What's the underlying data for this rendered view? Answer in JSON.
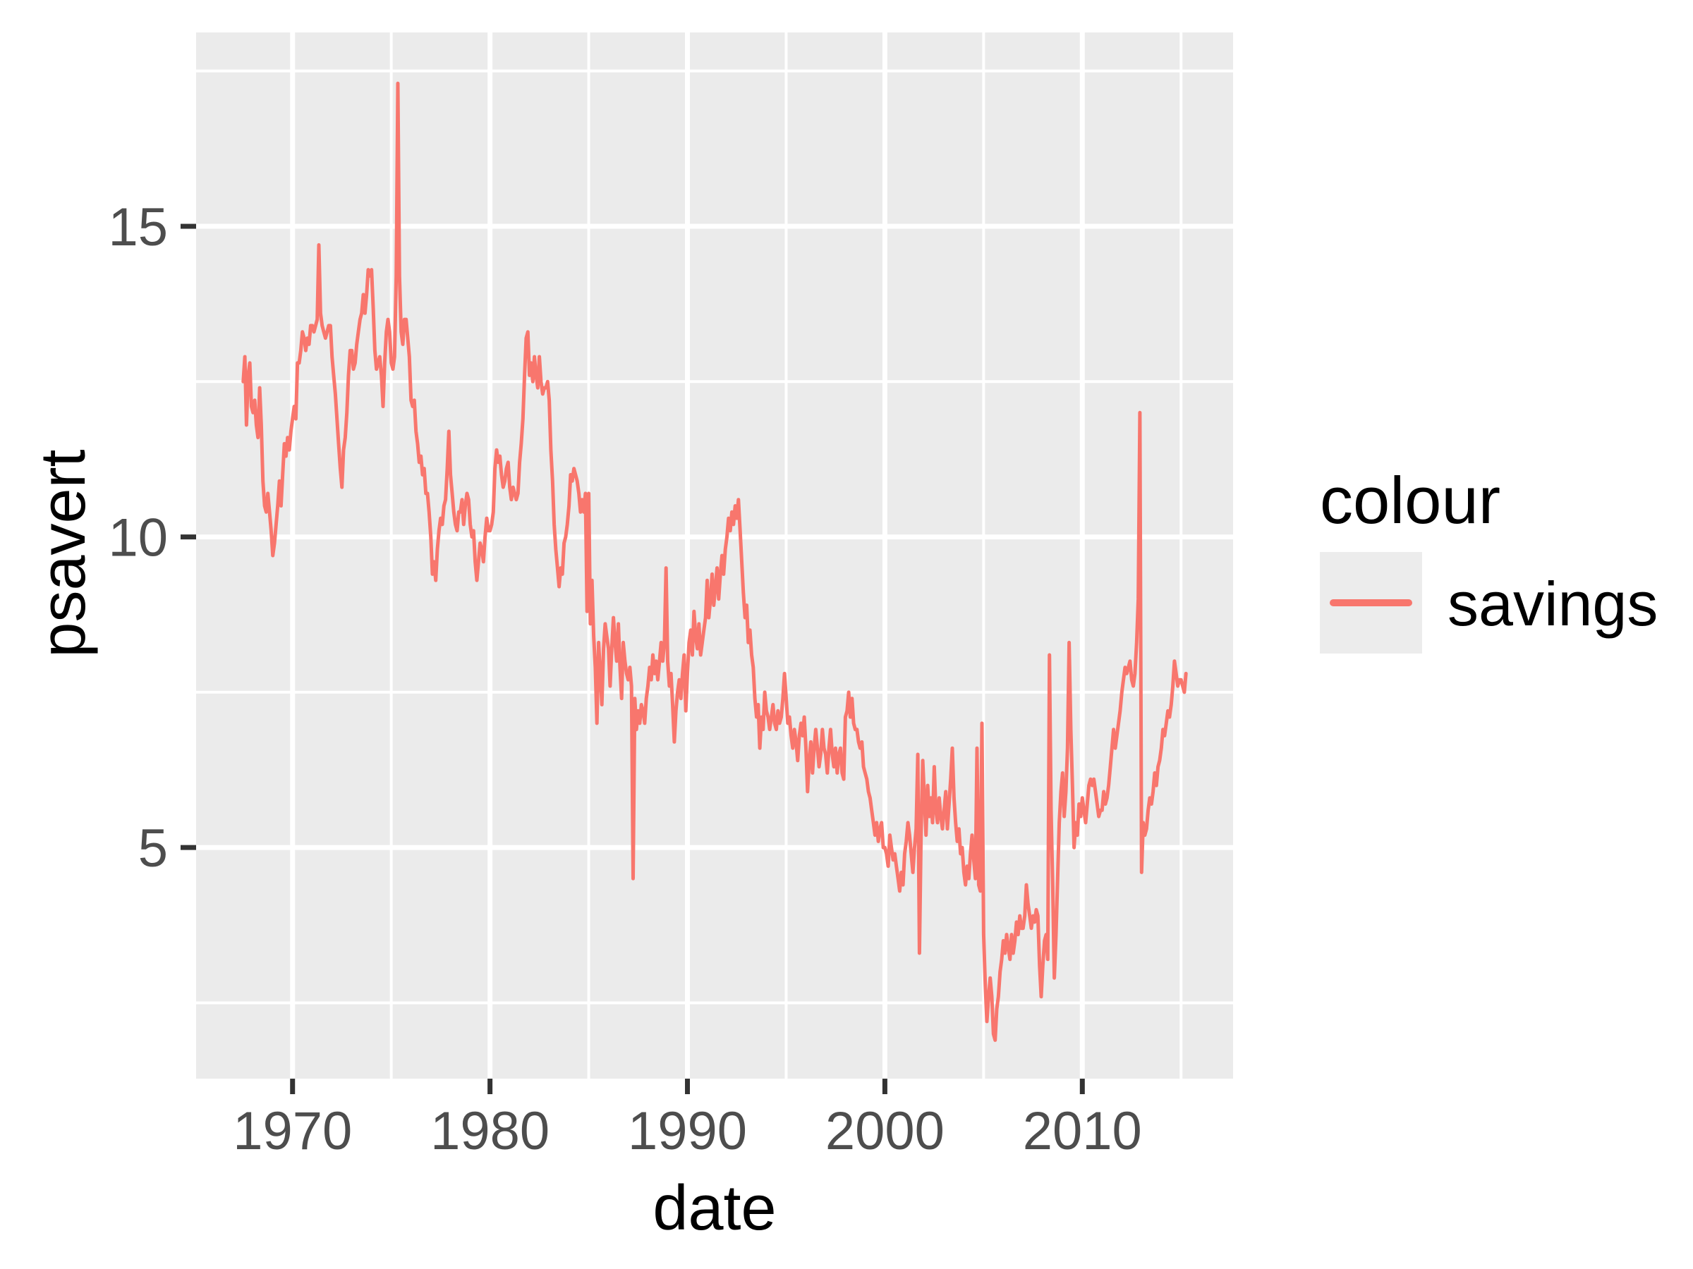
{
  "chart_data": {
    "type": "line",
    "title": "",
    "xlabel": "date",
    "ylabel": "psavert",
    "legend": {
      "title": "colour",
      "position": "right",
      "entries": [
        {
          "label": "savings",
          "color": "#F8766D"
        }
      ]
    },
    "panel_bg": "#EBEBEB",
    "grid": true,
    "grid_color": "#FFFFFF",
    "tick_color": "#333333",
    "tick_label_color": "#4D4D4D",
    "x_domain": [
      1965.115,
      2017.635
    ],
    "y_domain": [
      1.28,
      18.12
    ],
    "x_major_ticks": [
      1970,
      1980,
      1990,
      2000,
      2010
    ],
    "x_minor_ticks": [
      1965,
      1975,
      1985,
      1995,
      2005,
      2015
    ],
    "y_major_ticks": [
      5,
      10,
      15
    ],
    "y_minor_ticks": [
      2.5,
      7.5,
      12.5,
      17.5
    ],
    "x_tick_labels": [
      "1970",
      "1980",
      "1990",
      "2000",
      "2010"
    ],
    "y_tick_labels": [
      "5",
      "10",
      "15"
    ],
    "series": [
      {
        "name": "savings",
        "color": "#F8766D",
        "frequency": "monthly",
        "start_year": 1967,
        "start_month": 7,
        "values": [
          12.5,
          12.9,
          11.8,
          12.6,
          12.8,
          12.1,
          12.0,
          12.2,
          11.8,
          11.6,
          12.4,
          11.8,
          10.9,
          10.5,
          10.4,
          10.7,
          10.4,
          10.1,
          9.7,
          9.9,
          10.2,
          10.5,
          10.9,
          10.5,
          11.0,
          11.5,
          11.3,
          11.6,
          11.4,
          11.7,
          11.9,
          12.1,
          11.9,
          12.8,
          12.8,
          13.0,
          13.3,
          13.2,
          13.0,
          13.2,
          13.1,
          13.4,
          13.4,
          13.3,
          13.4,
          13.5,
          14.7,
          13.6,
          13.4,
          13.3,
          13.2,
          13.3,
          13.4,
          13.4,
          12.9,
          12.6,
          12.3,
          11.9,
          11.5,
          11.1,
          10.8,
          11.4,
          11.6,
          12.0,
          12.6,
          13.0,
          13.0,
          12.7,
          12.8,
          13.1,
          13.3,
          13.5,
          13.6,
          13.9,
          13.6,
          13.9,
          14.3,
          14.2,
          14.3,
          13.7,
          13.0,
          12.7,
          12.8,
          12.9,
          12.6,
          12.1,
          12.8,
          13.3,
          13.5,
          13.3,
          12.8,
          12.7,
          12.9,
          14.2,
          17.3,
          14.2,
          13.3,
          13.1,
          13.5,
          13.5,
          13.2,
          12.9,
          12.2,
          12.1,
          12.2,
          11.7,
          11.5,
          11.2,
          11.3,
          11.0,
          11.1,
          10.7,
          10.7,
          10.4,
          10.0,
          9.4,
          9.6,
          9.3,
          9.8,
          10.1,
          10.3,
          10.2,
          10.5,
          10.6,
          11.1,
          11.7,
          11.0,
          10.7,
          10.4,
          10.2,
          10.1,
          10.4,
          10.4,
          10.6,
          10.2,
          10.5,
          10.7,
          10.6,
          10.2,
          10.0,
          10.1,
          9.6,
          9.3,
          9.6,
          9.9,
          9.8,
          9.6,
          10.0,
          10.3,
          10.1,
          10.1,
          10.2,
          10.4,
          11.1,
          11.4,
          11.2,
          11.3,
          11.0,
          10.8,
          10.9,
          11.1,
          11.2,
          10.8,
          10.6,
          10.8,
          10.7,
          10.6,
          10.7,
          11.2,
          11.5,
          11.9,
          12.6,
          13.2,
          13.3,
          12.6,
          12.8,
          12.5,
          12.9,
          12.6,
          12.4,
          12.9,
          12.5,
          12.3,
          12.4,
          12.4,
          12.5,
          12.2,
          11.4,
          10.9,
          10.2,
          9.8,
          9.5,
          9.2,
          9.5,
          9.4,
          9.9,
          10.0,
          10.2,
          10.5,
          11.0,
          10.9,
          11.1,
          11.0,
          10.9,
          10.7,
          10.4,
          10.6,
          10.4,
          10.7,
          8.8,
          10.7,
          8.6,
          9.3,
          8.4,
          7.9,
          7.0,
          8.3,
          7.8,
          7.3,
          8.2,
          8.6,
          8.4,
          8.2,
          7.6,
          8.2,
          8.7,
          8.3,
          8.0,
          8.6,
          7.9,
          7.4,
          8.3,
          8.0,
          7.8,
          7.7,
          7.9,
          7.6,
          4.5,
          7.4,
          6.9,
          7.2,
          7.0,
          7.3,
          7.2,
          7.0,
          7.4,
          7.6,
          7.9,
          7.7,
          8.1,
          7.8,
          8.0,
          7.7,
          8.0,
          8.3,
          8.0,
          8.3,
          9.5,
          8.0,
          7.6,
          7.8,
          7.3,
          6.7,
          7.2,
          7.5,
          7.7,
          7.4,
          7.8,
          8.1,
          7.2,
          7.8,
          8.3,
          8.5,
          8.1,
          8.8,
          8.4,
          8.2,
          8.6,
          8.1,
          8.3,
          8.5,
          8.7,
          9.3,
          8.7,
          9.0,
          9.4,
          8.9,
          9.2,
          9.5,
          9.0,
          9.4,
          9.7,
          9.4,
          9.8,
          10.0,
          10.3,
          10.1,
          10.4,
          10.2,
          10.5,
          10.3,
          10.6,
          10.1,
          9.6,
          9.1,
          8.7,
          8.9,
          8.3,
          8.5,
          8.1,
          7.9,
          7.4,
          7.1,
          7.3,
          6.6,
          7.1,
          6.9,
          7.5,
          7.2,
          7.1,
          6.9,
          7.1,
          7.3,
          7.0,
          6.9,
          7.2,
          7.0,
          7.1,
          7.4,
          7.8,
          7.4,
          7.0,
          7.1,
          6.8,
          6.6,
          6.9,
          6.7,
          6.4,
          6.8,
          7.0,
          6.8,
          7.1,
          6.6,
          5.9,
          6.4,
          6.7,
          6.2,
          6.6,
          6.9,
          6.6,
          6.3,
          6.5,
          6.9,
          6.6,
          6.5,
          6.2,
          6.6,
          6.9,
          6.5,
          6.3,
          6.6,
          6.2,
          6.5,
          6.6,
          6.2,
          6.1,
          7.1,
          7.2,
          7.5,
          7.1,
          7.4,
          7.0,
          6.9,
          6.9,
          6.7,
          6.6,
          6.7,
          6.3,
          6.2,
          6.1,
          5.9,
          5.8,
          5.6,
          5.4,
          5.2,
          5.4,
          5.1,
          5.3,
          5.4,
          5.0,
          5.0,
          4.9,
          4.7,
          5.2,
          5.0,
          4.8,
          4.9,
          4.7,
          4.5,
          4.3,
          4.6,
          4.4,
          4.9,
          5.1,
          5.4,
          5.2,
          4.9,
          4.6,
          5.0,
          5.3,
          6.5,
          3.3,
          5.2,
          6.4,
          5.8,
          5.2,
          6.0,
          5.5,
          5.8,
          5.4,
          6.3,
          5.6,
          5.4,
          5.8,
          5.5,
          5.3,
          5.6,
          5.9,
          5.3,
          5.7,
          6.1,
          6.6,
          5.8,
          5.4,
          5.1,
          5.3,
          4.9,
          5.0,
          4.6,
          4.4,
          4.7,
          4.5,
          4.9,
          5.2,
          4.8,
          4.5,
          6.6,
          4.4,
          4.3,
          7.0,
          3.6,
          2.8,
          2.2,
          2.6,
          2.9,
          2.6,
          2.0,
          1.9,
          2.4,
          2.6,
          3.0,
          3.2,
          3.5,
          3.3,
          3.6,
          3.4,
          3.2,
          3.6,
          3.3,
          3.5,
          3.8,
          3.6,
          3.9,
          3.7,
          3.7,
          3.9,
          4.4,
          4.1,
          3.9,
          3.7,
          3.9,
          3.8,
          4.0,
          3.9,
          3.1,
          2.6,
          3.1,
          3.5,
          3.6,
          3.2,
          8.1,
          5.6,
          4.4,
          2.9,
          3.6,
          4.5,
          5.4,
          5.9,
          6.2,
          5.5,
          5.9,
          6.6,
          8.3,
          6.9,
          6.0,
          5.0,
          5.4,
          5.2,
          5.7,
          5.5,
          5.8,
          5.6,
          5.4,
          5.7,
          6.0,
          6.1,
          6.0,
          6.1,
          5.9,
          5.7,
          5.5,
          5.6,
          5.6,
          5.9,
          5.7,
          5.8,
          6.0,
          6.3,
          6.6,
          6.9,
          6.6,
          6.8,
          7.0,
          7.2,
          7.5,
          7.7,
          7.9,
          7.8,
          7.9,
          8.0,
          7.7,
          7.6,
          7.8,
          8.3,
          9.0,
          12.0,
          4.6,
          5.4,
          5.2,
          5.3,
          5.6,
          5.8,
          5.7,
          5.9,
          6.2,
          6.0,
          6.3,
          6.4,
          6.6,
          6.9,
          6.8,
          7.0,
          7.2,
          7.1,
          7.3,
          7.6,
          8.0,
          7.8,
          7.6,
          7.7,
          7.7,
          7.6,
          7.5,
          7.8
        ]
      }
    ]
  }
}
